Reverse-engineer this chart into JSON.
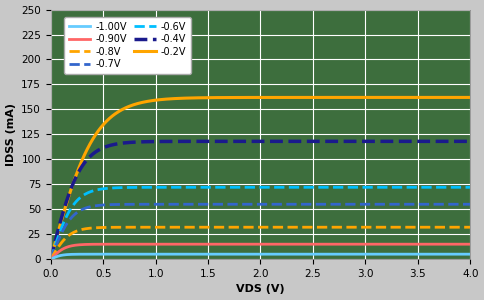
{
  "title": "",
  "xlabel": "VDS (V)",
  "ylabel": "IDSS (mA)",
  "xlim": [
    0.0,
    4.0
  ],
  "ylim": [
    0,
    250
  ],
  "yticks": [
    0,
    25,
    50,
    75,
    100,
    125,
    150,
    175,
    200,
    225,
    250
  ],
  "xticks": [
    0.0,
    0.5,
    1.0,
    1.5,
    2.0,
    2.5,
    3.0,
    3.5,
    4.0
  ],
  "plot_bg_color": "#3d6e3d",
  "figure_bg": "#c8c8c8",
  "grid_color": "#ffffff",
  "curves": [
    {
      "label": "-0.2V",
      "color": "#FFA500",
      "linestyle": "solid",
      "linewidth": 2.2,
      "Isat": 162,
      "Vknee": 0.42
    },
    {
      "label": "-0.4V",
      "color": "#1a1a8c",
      "linestyle": "dashed",
      "linewidth": 2.5,
      "Isat": 118,
      "Vknee": 0.28
    },
    {
      "label": "-0.6V",
      "color": "#00BFFF",
      "linestyle": "dashed",
      "linewidth": 2.0,
      "Isat": 72,
      "Vknee": 0.22
    },
    {
      "label": "-0.7V",
      "color": "#3366CC",
      "linestyle": "dashed",
      "linewidth": 2.0,
      "Isat": 55,
      "Vknee": 0.2
    },
    {
      "label": "-0.8V",
      "color": "#FFA500",
      "linestyle": "dashed",
      "linewidth": 2.0,
      "Isat": 32,
      "Vknee": 0.18
    },
    {
      "label": "-0.90V",
      "color": "#FF6666",
      "linestyle": "solid",
      "linewidth": 2.0,
      "Isat": 15,
      "Vknee": 0.14
    },
    {
      "label": "-1.00V",
      "color": "#66CCFF",
      "linestyle": "solid",
      "linewidth": 2.0,
      "Isat": 5,
      "Vknee": 0.1
    }
  ],
  "legend_rows": [
    [
      "-1.00V",
      "-0.90V"
    ],
    [
      "-0.8V",
      "-0.7V"
    ],
    [
      "-0.6V",
      "-0.4V"
    ],
    [
      "-0.2V",
      null
    ]
  ]
}
